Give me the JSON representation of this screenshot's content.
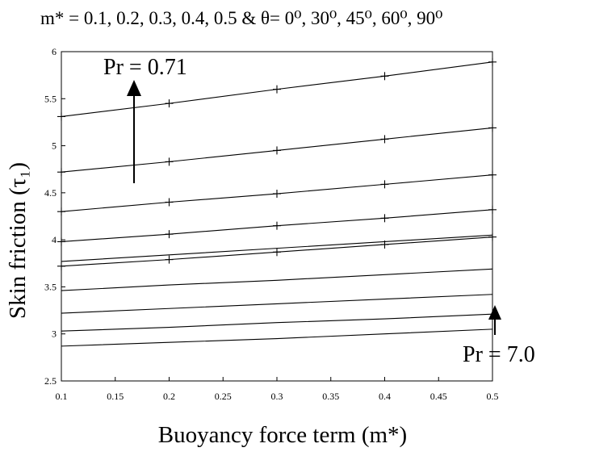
{
  "chart_data": {
    "type": "line",
    "title": "m* = 0.1, 0.2, 0.3, 0.4, 0.5 & θ= 0⁰, 30⁰, 45⁰, 60⁰, 90⁰",
    "xlabel": "Buoyancy force term (m*)",
    "ylabel": "Skin friction (τ₁)",
    "xlim": [
      0.1,
      0.5
    ],
    "ylim": [
      2.5,
      6
    ],
    "x_ticks": [
      "0.1",
      "0.15",
      "0.2",
      "0.25",
      "0.3",
      "0.35",
      "0.4",
      "0.45",
      "0.5"
    ],
    "y_ticks": [
      "2.5",
      "3",
      "3.5",
      "4",
      "4.5",
      "5",
      "5.5",
      "6"
    ],
    "grid": false,
    "x": [
      0.1,
      0.2,
      0.3,
      0.4,
      0.5
    ],
    "series": [
      {
        "values": [
          5.31,
          5.45,
          5.6,
          5.74,
          5.89
        ],
        "markers": true
      },
      {
        "values": [
          4.72,
          4.83,
          4.95,
          5.07,
          5.19
        ],
        "markers": true
      },
      {
        "values": [
          4.3,
          4.4,
          4.49,
          4.59,
          4.69
        ],
        "markers": true
      },
      {
        "values": [
          3.98,
          4.06,
          4.15,
          4.23,
          4.32
        ],
        "markers": true
      },
      {
        "values": [
          3.77,
          3.84,
          3.91,
          3.98,
          4.05
        ],
        "markers": false
      },
      {
        "values": [
          3.72,
          3.79,
          3.87,
          3.95,
          4.03
        ],
        "markers": true
      },
      {
        "values": [
          3.46,
          3.52,
          3.57,
          3.63,
          3.69
        ],
        "markers": false
      },
      {
        "values": [
          3.22,
          3.27,
          3.32,
          3.37,
          3.42
        ],
        "markers": false
      },
      {
        "values": [
          3.03,
          3.07,
          3.12,
          3.16,
          3.21
        ],
        "markers": false
      },
      {
        "values": [
          2.87,
          2.91,
          2.95,
          3.0,
          3.05
        ],
        "markers": false
      }
    ],
    "annotations": {
      "top": "Pr = 0.71",
      "bottom": "Pr = 7.0"
    }
  }
}
